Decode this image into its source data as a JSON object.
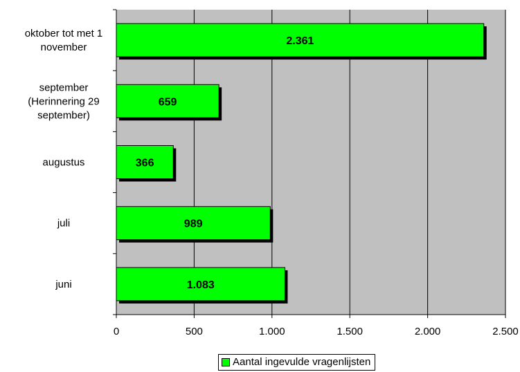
{
  "chart_data": {
    "type": "bar",
    "orientation": "horizontal",
    "categories": [
      "oktober tot met 1 november",
      "september (Herinnering 29 september)",
      "augustus",
      "juli",
      "juni"
    ],
    "category_lines": [
      [
        "oktober tot met 1",
        "november"
      ],
      [
        "september",
        "(Herinnering 29",
        "september)"
      ],
      [
        "augustus"
      ],
      [
        "juli"
      ],
      [
        "juni"
      ]
    ],
    "series": [
      {
        "name": "Aantal ingevulde vragenlijsten",
        "values": [
          2361,
          659,
          366,
          989,
          1083
        ],
        "color": "#00ff00"
      }
    ],
    "data_labels": [
      "2.361",
      "659",
      "366",
      "989",
      "1.083"
    ],
    "xlim": [
      0,
      2500
    ],
    "xticks": [
      0,
      500,
      1000,
      1500,
      2000,
      2500
    ],
    "xtick_labels": [
      "0",
      "500",
      "1.000",
      "1.500",
      "2.000",
      "2.500"
    ],
    "grid": true,
    "plot_background": "#c0c0c0",
    "legend_position": "bottom",
    "title": "",
    "xlabel": "",
    "ylabel": ""
  }
}
